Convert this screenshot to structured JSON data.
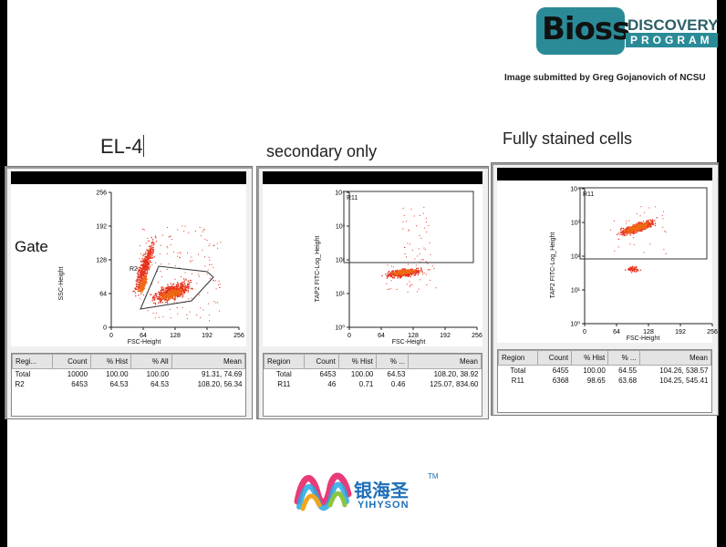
{
  "header": {
    "logo_big": "Bioss",
    "logo_discovery": "DISCOVERY",
    "logo_program": "PROGRAM",
    "credit": "Image submitted by Greg Gojanovich of NCSU"
  },
  "captions": {
    "el4": "EL-4",
    "secondary": "secondary only",
    "full": "Fully stained cells"
  },
  "gate_label": "Gate",
  "panels": [
    {
      "plot": {
        "ylabel": "SSC-Height",
        "xlabel": "FSC-Height",
        "xticks": [
          "0",
          "64",
          "128",
          "192",
          "256"
        ],
        "yticks": [
          "0",
          "64",
          "128",
          "192",
          "256"
        ],
        "region_label": "R2"
      },
      "table": {
        "headers": [
          "Regi...",
          "Count",
          "% Hist",
          "% All",
          "Mean"
        ],
        "rows": [
          [
            "Total",
            "10000",
            "100.00",
            "100.00",
            "91.31, 74.69"
          ],
          [
            "R2",
            "6453",
            "64.53",
            "64.53",
            "108.20, 56.34"
          ]
        ]
      }
    },
    {
      "plot": {
        "ylabel": "TAP2 FITC-Log_Height",
        "xlabel": "FSC-Height",
        "xticks": [
          "0",
          "64",
          "128",
          "192",
          "256"
        ],
        "yticks": [
          "10⁰",
          "10¹",
          "10²",
          "10³",
          "10⁴"
        ],
        "region_label": "R11"
      },
      "table": {
        "headers": [
          "Region",
          "Count",
          "% Hist",
          "% ...",
          "Mean"
        ],
        "rows": [
          [
            "Total",
            "6453",
            "100.00",
            "64.53",
            "108.20, 38.92"
          ],
          [
            "R11",
            "46",
            "0.71",
            "0.46",
            "125.07, 834.60"
          ]
        ]
      }
    },
    {
      "plot": {
        "ylabel": "TAP2 FITC-Log_Height",
        "xlabel": "FSC-Height",
        "xticks": [
          "0",
          "64",
          "128",
          "192",
          "256"
        ],
        "yticks": [
          "10⁰",
          "10¹",
          "10²",
          "10³",
          "10⁴"
        ],
        "region_label": "R11"
      },
      "table": {
        "headers": [
          "Region",
          "Count",
          "% Hist",
          "% ...",
          "Mean"
        ],
        "rows": [
          [
            "Total",
            "6455",
            "100.00",
            "64.55",
            "104.26, 538.57"
          ],
          [
            "R11",
            "6368",
            "98.65",
            "63.68",
            "104.25, 545.41"
          ]
        ]
      }
    }
  ],
  "footer": {
    "brand_cn": "银海圣",
    "brand_tm": "TM",
    "brand_en": "YIHYSON"
  },
  "colors": {
    "dots": "#e5301c",
    "dots_dense": "#f06a16",
    "region": "#333333"
  }
}
